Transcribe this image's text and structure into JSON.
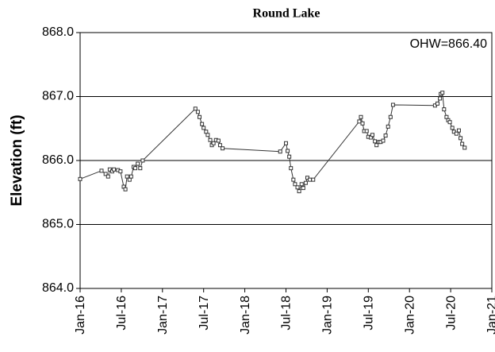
{
  "chart_data": {
    "type": "line",
    "title": "Round Lake",
    "y_label": "Elevation (ft)",
    "annotation": "OHW=866.40",
    "color": "#333333",
    "grid": true,
    "xlim": [
      2016,
      2021
    ],
    "ylim": [
      864,
      868
    ],
    "xticks": [
      {
        "value": 2016,
        "label": "Jan-16"
      },
      {
        "value": 2016.5,
        "label": "Jul-16"
      },
      {
        "value": 2017,
        "label": "Jan-17"
      },
      {
        "value": 2017.5,
        "label": "Jul-17"
      },
      {
        "value": 2018,
        "label": "Jan-18"
      },
      {
        "value": 2018.5,
        "label": "Jul-18"
      },
      {
        "value": 2019,
        "label": "Jan-19"
      },
      {
        "value": 2019.5,
        "label": "Jul-19"
      },
      {
        "value": 2020,
        "label": "Jan-20"
      },
      {
        "value": 2020.5,
        "label": "Jul-20"
      },
      {
        "value": 2021,
        "label": "Jan-21"
      }
    ],
    "yticks": [
      {
        "value": 864,
        "label": "864.0"
      },
      {
        "value": 865,
        "label": "865.0"
      },
      {
        "value": 866,
        "label": "866.0"
      },
      {
        "value": 867,
        "label": "867.0"
      },
      {
        "value": 868,
        "label": "868.0"
      }
    ],
    "x": [
      2016.0,
      2016.26,
      2016.31,
      2016.34,
      2016.36,
      2016.39,
      2016.41,
      2016.46,
      2016.49,
      2016.53,
      2016.55,
      2016.57,
      2016.6,
      2016.62,
      2016.65,
      2016.67,
      2016.7,
      2016.73,
      2016.76,
      2017.4,
      2017.43,
      2017.45,
      2017.48,
      2017.5,
      2017.53,
      2017.55,
      2017.58,
      2017.6,
      2017.62,
      2017.65,
      2017.68,
      2017.7,
      2017.73,
      2018.43,
      2018.5,
      2018.52,
      2018.54,
      2018.56,
      2018.59,
      2018.61,
      2018.64,
      2018.66,
      2018.69,
      2018.71,
      2018.74,
      2018.76,
      2018.79,
      2018.83,
      2019.39,
      2019.41,
      2019.43,
      2019.45,
      2019.48,
      2019.5,
      2019.53,
      2019.55,
      2019.58,
      2019.6,
      2019.63,
      2019.65,
      2019.68,
      2019.71,
      2019.74,
      2019.77,
      2019.8,
      2020.31,
      2020.34,
      2020.37,
      2020.38,
      2020.4,
      2020.42,
      2020.45,
      2020.47,
      2020.49,
      2020.52,
      2020.54,
      2020.57,
      2020.6,
      2020.62,
      2020.64,
      2020.67
    ],
    "values": [
      865.71,
      865.84,
      865.79,
      865.75,
      865.86,
      865.83,
      865.86,
      865.85,
      865.83,
      865.59,
      865.55,
      865.75,
      865.7,
      865.75,
      865.9,
      865.88,
      865.95,
      865.88,
      866.0,
      866.81,
      866.76,
      866.68,
      866.57,
      866.51,
      866.45,
      866.4,
      866.32,
      866.24,
      866.27,
      866.32,
      866.31,
      866.24,
      866.19,
      866.14,
      866.27,
      866.15,
      866.06,
      865.88,
      865.7,
      865.63,
      865.58,
      865.52,
      865.63,
      865.57,
      865.65,
      865.73,
      865.7,
      865.7,
      866.61,
      866.68,
      866.58,
      866.46,
      866.46,
      866.37,
      866.36,
      866.4,
      866.3,
      866.24,
      866.29,
      866.29,
      866.31,
      866.39,
      866.53,
      866.68,
      866.87,
      866.86,
      866.89,
      866.97,
      867.04,
      867.06,
      866.8,
      866.68,
      866.63,
      866.6,
      866.51,
      866.45,
      866.42,
      866.47,
      866.35,
      866.26,
      866.2
    ]
  }
}
